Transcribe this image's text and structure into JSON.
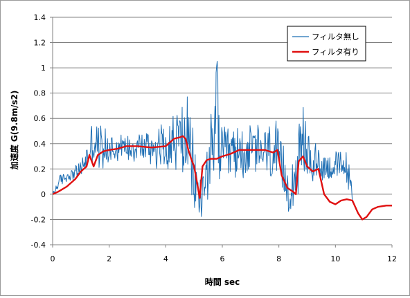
{
  "chart_data": {
    "type": "line",
    "title": "",
    "xlabel": "時間 sec",
    "ylabel": "加速度 G(9.8m/s2)",
    "xlim": [
      0,
      12
    ],
    "ylim": [
      -0.4,
      1.4
    ],
    "x_ticks": [
      "0",
      "2",
      "4",
      "6",
      "8",
      "10",
      "12"
    ],
    "y_ticks": [
      "-0.4",
      "-0.2",
      "0",
      "0.2",
      "0.4",
      "0.6",
      "0.8",
      "1",
      "1.2",
      "1.4"
    ],
    "grid": "horizontal",
    "legend_position": "top-right",
    "series": [
      {
        "name": "フィルタ無し",
        "color": "#1f6fb4",
        "sample_step": 0.02,
        "x_range": [
          0,
          10.6
        ],
        "envelope": {
          "x": [
            0,
            0.3,
            0.6,
            1.0,
            1.2,
            1.4,
            1.6,
            2.0,
            2.5,
            3.0,
            3.5,
            4.0,
            4.3,
            4.6,
            4.8,
            5.0,
            5.2,
            5.35,
            5.5,
            5.7,
            5.8,
            5.9,
            6.0,
            6.3,
            7.0,
            7.5,
            7.9,
            8.1,
            8.4,
            8.7,
            8.85,
            9.0,
            9.3,
            9.6,
            10.0,
            10.4,
            10.55,
            10.6
          ],
          "mid": [
            0.0,
            0.12,
            0.15,
            0.2,
            0.28,
            0.42,
            0.38,
            0.36,
            0.38,
            0.38,
            0.38,
            0.38,
            0.42,
            0.45,
            0.38,
            0.15,
            -0.05,
            0.05,
            0.25,
            0.27,
            0.4,
            0.3,
            0.3,
            0.32,
            0.35,
            0.33,
            0.3,
            0.15,
            0.05,
            0.25,
            0.4,
            0.3,
            0.25,
            0.22,
            0.22,
            0.22,
            0.05,
            -0.05
          ],
          "amp": [
            0.04,
            0.06,
            0.05,
            0.08,
            0.12,
            0.2,
            0.22,
            0.16,
            0.12,
            0.14,
            0.18,
            0.26,
            0.28,
            0.38,
            0.4,
            0.35,
            0.22,
            0.3,
            0.35,
            0.45,
            0.8,
            0.3,
            0.28,
            0.25,
            0.25,
            0.26,
            0.32,
            0.3,
            0.22,
            0.3,
            0.35,
            0.3,
            0.18,
            0.15,
            0.14,
            0.16,
            0.1,
            0.05
          ]
        }
      },
      {
        "name": "フィルタ有り",
        "color": "#e01010",
        "x": [
          0,
          0.2,
          0.5,
          0.8,
          1.0,
          1.2,
          1.3,
          1.45,
          1.6,
          1.8,
          2.0,
          2.3,
          2.6,
          3.0,
          3.5,
          4.0,
          4.3,
          4.5,
          4.6,
          4.7,
          4.8,
          4.9,
          5.0,
          5.1,
          5.2,
          5.3,
          5.45,
          5.6,
          5.8,
          6.0,
          6.3,
          6.6,
          7.0,
          7.5,
          7.8,
          7.95,
          8.1,
          8.3,
          8.5,
          8.6,
          8.7,
          8.85,
          9.0,
          9.2,
          9.4,
          9.6,
          9.8,
          10.0,
          10.2,
          10.4,
          10.6,
          10.8,
          10.95,
          11.1,
          11.3,
          11.5,
          11.8,
          12.0
        ],
        "values": [
          0.0,
          0.02,
          0.06,
          0.12,
          0.18,
          0.22,
          0.31,
          0.22,
          0.31,
          0.34,
          0.35,
          0.36,
          0.38,
          0.38,
          0.37,
          0.38,
          0.44,
          0.45,
          0.46,
          0.44,
          0.35,
          0.28,
          0.22,
          0.1,
          -0.03,
          0.22,
          0.27,
          0.28,
          0.28,
          0.3,
          0.32,
          0.35,
          0.35,
          0.35,
          0.33,
          0.35,
          0.15,
          0.05,
          0.02,
          0.0,
          0.26,
          0.3,
          0.22,
          0.18,
          0.2,
          0.0,
          -0.06,
          -0.08,
          -0.05,
          -0.04,
          -0.05,
          -0.15,
          -0.2,
          -0.18,
          -0.12,
          -0.1,
          -0.09,
          -0.09
        ]
      }
    ]
  }
}
